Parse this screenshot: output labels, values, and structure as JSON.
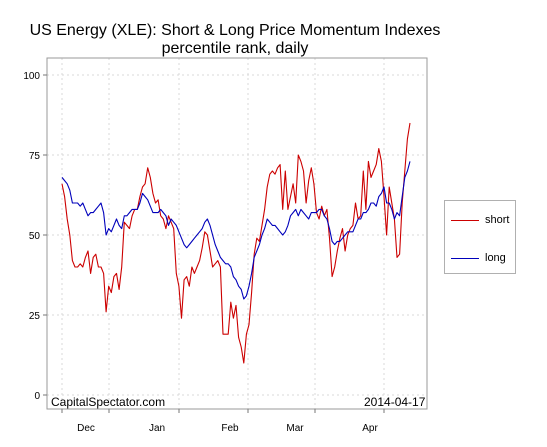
{
  "chart_data": {
    "type": "line",
    "title": "US Energy (XLE): Short & Long Price Momentum Indexes",
    "subtitle": "percentile rank, daily",
    "xlabel": "",
    "ylabel": "",
    "ylim": [
      0,
      100
    ],
    "yticks": [
      "0",
      "25",
      "50",
      "75",
      "100"
    ],
    "xticks": [
      "Dec",
      "Jan",
      "Feb",
      "Mar",
      "Apr"
    ],
    "grid": true,
    "legend_position": "right",
    "source_label": "CapitalSpectator.com",
    "date_label": "2014-04-17",
    "series": [
      {
        "name": "short",
        "color": "#cc0000",
        "values": [
          66,
          62,
          55,
          50,
          42,
          40,
          40,
          41,
          40,
          43,
          45,
          38,
          43,
          44,
          40,
          40,
          38,
          26,
          34,
          32,
          37,
          38,
          33,
          40,
          54,
          53,
          52,
          56,
          58,
          58,
          62,
          65,
          66,
          71,
          68,
          63,
          60,
          61,
          56,
          55,
          52,
          56,
          54,
          52,
          38,
          34,
          24,
          36,
          37,
          34,
          40,
          38,
          40,
          42,
          46,
          51,
          50,
          45,
          40,
          41,
          42,
          40,
          19,
          19,
          19,
          29,
          24,
          28,
          18,
          15,
          10,
          19,
          22,
          32,
          44,
          49,
          48,
          53,
          58,
          65,
          69,
          70,
          69,
          71,
          72,
          58,
          70,
          58,
          62,
          66,
          60,
          75,
          73,
          70,
          60,
          67,
          71,
          66,
          57,
          55,
          59,
          56,
          58,
          49,
          37,
          40,
          45,
          49,
          52,
          45,
          50,
          52,
          53,
          60,
          55,
          56,
          70,
          58,
          73,
          68,
          70,
          72,
          77,
          73,
          62,
          50,
          65,
          60,
          55,
          43,
          44,
          60,
          70,
          80,
          85
        ]
      },
      {
        "name": "long",
        "color": "#0000bb",
        "values": [
          68,
          67,
          66,
          64,
          60,
          60,
          60,
          59,
          60,
          58,
          56,
          57,
          57,
          58,
          59,
          60,
          57,
          50,
          52,
          51,
          53,
          55,
          53,
          52,
          56,
          56,
          57,
          58,
          58,
          58,
          60,
          63,
          62,
          61,
          59,
          57,
          57,
          57,
          58,
          57,
          56,
          53,
          55,
          54,
          53,
          51,
          49,
          47,
          46,
          47,
          48,
          49,
          50,
          51,
          52,
          54,
          55,
          53,
          50,
          47,
          45,
          43,
          42,
          41,
          41,
          40,
          37,
          36,
          34,
          33,
          30,
          31,
          34,
          38,
          43,
          45,
          47,
          50,
          52,
          55,
          54,
          53,
          53,
          52,
          51,
          50,
          51,
          53,
          56,
          57,
          58,
          56,
          58,
          57,
          56,
          55,
          57,
          57,
          57,
          58,
          58,
          56,
          55,
          52,
          48,
          47,
          48,
          48,
          49,
          50,
          51,
          51,
          51,
          53,
          55,
          55,
          57,
          57,
          58,
          60,
          60,
          59,
          62,
          63,
          65,
          60,
          60,
          58,
          55,
          57,
          56,
          62,
          68,
          70,
          73
        ]
      }
    ]
  }
}
